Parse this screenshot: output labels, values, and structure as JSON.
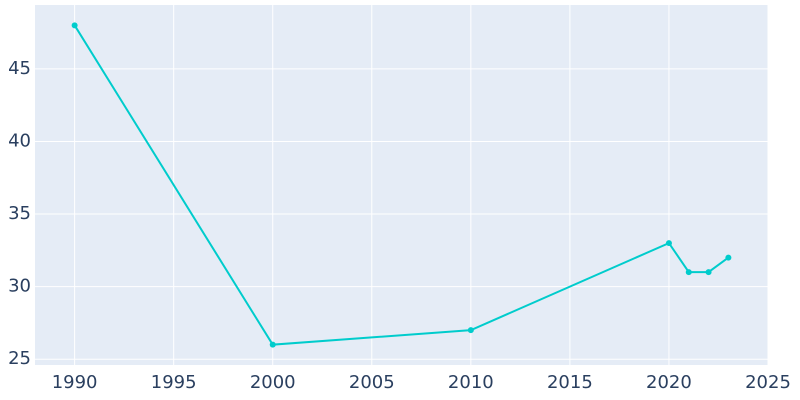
{
  "chart_data": {
    "type": "line",
    "x": [
      1990,
      2000,
      2010,
      2020,
      2021,
      2022,
      2023
    ],
    "series": [
      {
        "color": "#00cccc",
        "values": [
          48,
          26,
          27,
          33,
          31,
          31,
          32
        ]
      }
    ],
    "xlim": [
      1988,
      2025
    ],
    "xticks": [
      1990,
      1995,
      2000,
      2005,
      2010,
      2015,
      2020,
      2025
    ],
    "ylim": [
      24.6,
      49.4
    ],
    "yticks": [
      25,
      30,
      35,
      40,
      45
    ],
    "grid": true
  }
}
